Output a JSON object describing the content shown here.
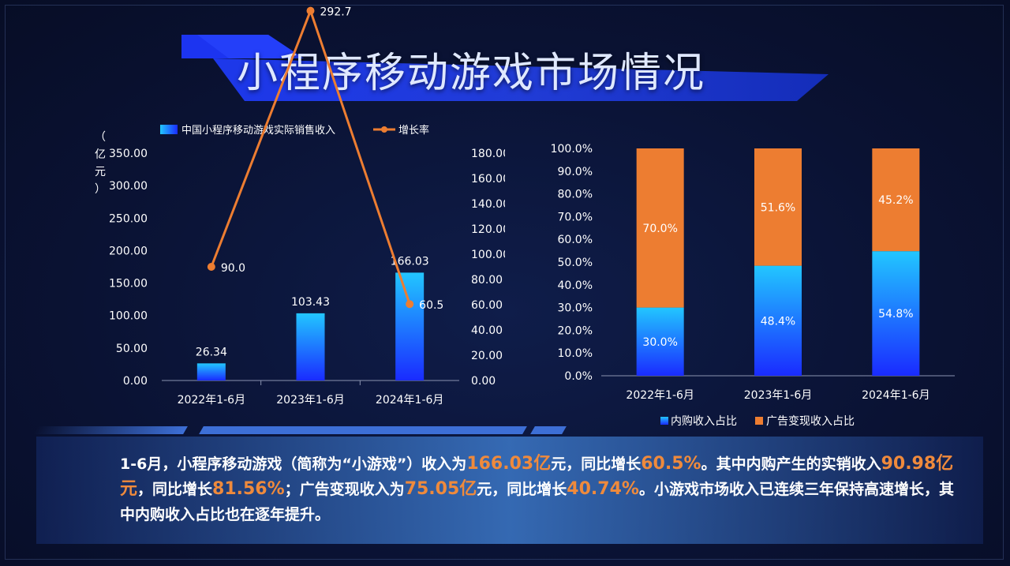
{
  "title": "小程序移动游戏市场情况",
  "colors": {
    "bar_top": "#22c6ff",
    "bar_bottom": "#1a2bff",
    "orange": "#ed7d31",
    "highlight": "#ef8a3c"
  },
  "chart_data": [
    {
      "type": "bar",
      "categories": [
        "2022年1-6月",
        "2023年1-6月",
        "2024年1-6月"
      ],
      "series": [
        {
          "name": "中国小程序移动游戏实际销售收入",
          "type": "bar",
          "axis": "left",
          "values": [
            26.34,
            103.43,
            166.03
          ],
          "labels": [
            "26.34",
            "103.43",
            "166.03"
          ]
        },
        {
          "name": "增长率",
          "type": "line",
          "axis": "right",
          "values": [
            90.0,
            292.7,
            60.5
          ],
          "labels": [
            "90.0",
            "292.7",
            "60.5"
          ]
        }
      ],
      "ylabel": "（亿元）",
      "ylim": [
        0,
        350
      ],
      "y_ticks": [
        "0.00",
        "50.00",
        "100.00",
        "150.00",
        "200.00",
        "250.00",
        "300.00",
        "350.00"
      ],
      "y2lim": [
        0,
        180
      ],
      "y2_ticks": [
        "0.00",
        "20.00",
        "40.00",
        "60.00",
        "80.00",
        "100.00",
        "120.00",
        "140.00",
        "160.00",
        "180.00"
      ],
      "legend": "top"
    },
    {
      "type": "bar",
      "stacked": true,
      "categories": [
        "2022年1-6月",
        "2023年1-6月",
        "2024年1-6月"
      ],
      "series": [
        {
          "name": "内购收入占比",
          "values": [
            30.0,
            48.4,
            54.8
          ],
          "labels": [
            "30.0%",
            "48.4%",
            "54.8%"
          ]
        },
        {
          "name": "广告变现收入占比",
          "values": [
            70.0,
            51.6,
            45.2
          ],
          "labels": [
            "70.0%",
            "51.6%",
            "45.2%"
          ]
        }
      ],
      "ylim": [
        0,
        100
      ],
      "y_ticks": [
        "0.0%",
        "10.0%",
        "20.0%",
        "30.0%",
        "40.0%",
        "50.0%",
        "60.0%",
        "70.0%",
        "80.0%",
        "90.0%",
        "100.0%"
      ],
      "legend": "bottom"
    }
  ],
  "description": {
    "p1": "1-6月，小程序移动游戏（简称为“小游戏”）收入为",
    "h1": "166.03亿",
    "p2": "元，同比增长",
    "h2": "60.5%",
    "p3": "。其中内购产生的实销收入",
    "h3": "90.98亿元",
    "p4": "，同比增长",
    "h4": "81.56%",
    "p5": "；广告变现收入为",
    "h5": "75.05亿",
    "p6": "元，同比增长",
    "h6": "40.74%",
    "p7": "。小游戏市场收入已连续三年保持高速增长，其中内购收入占比也在逐年提升。"
  }
}
